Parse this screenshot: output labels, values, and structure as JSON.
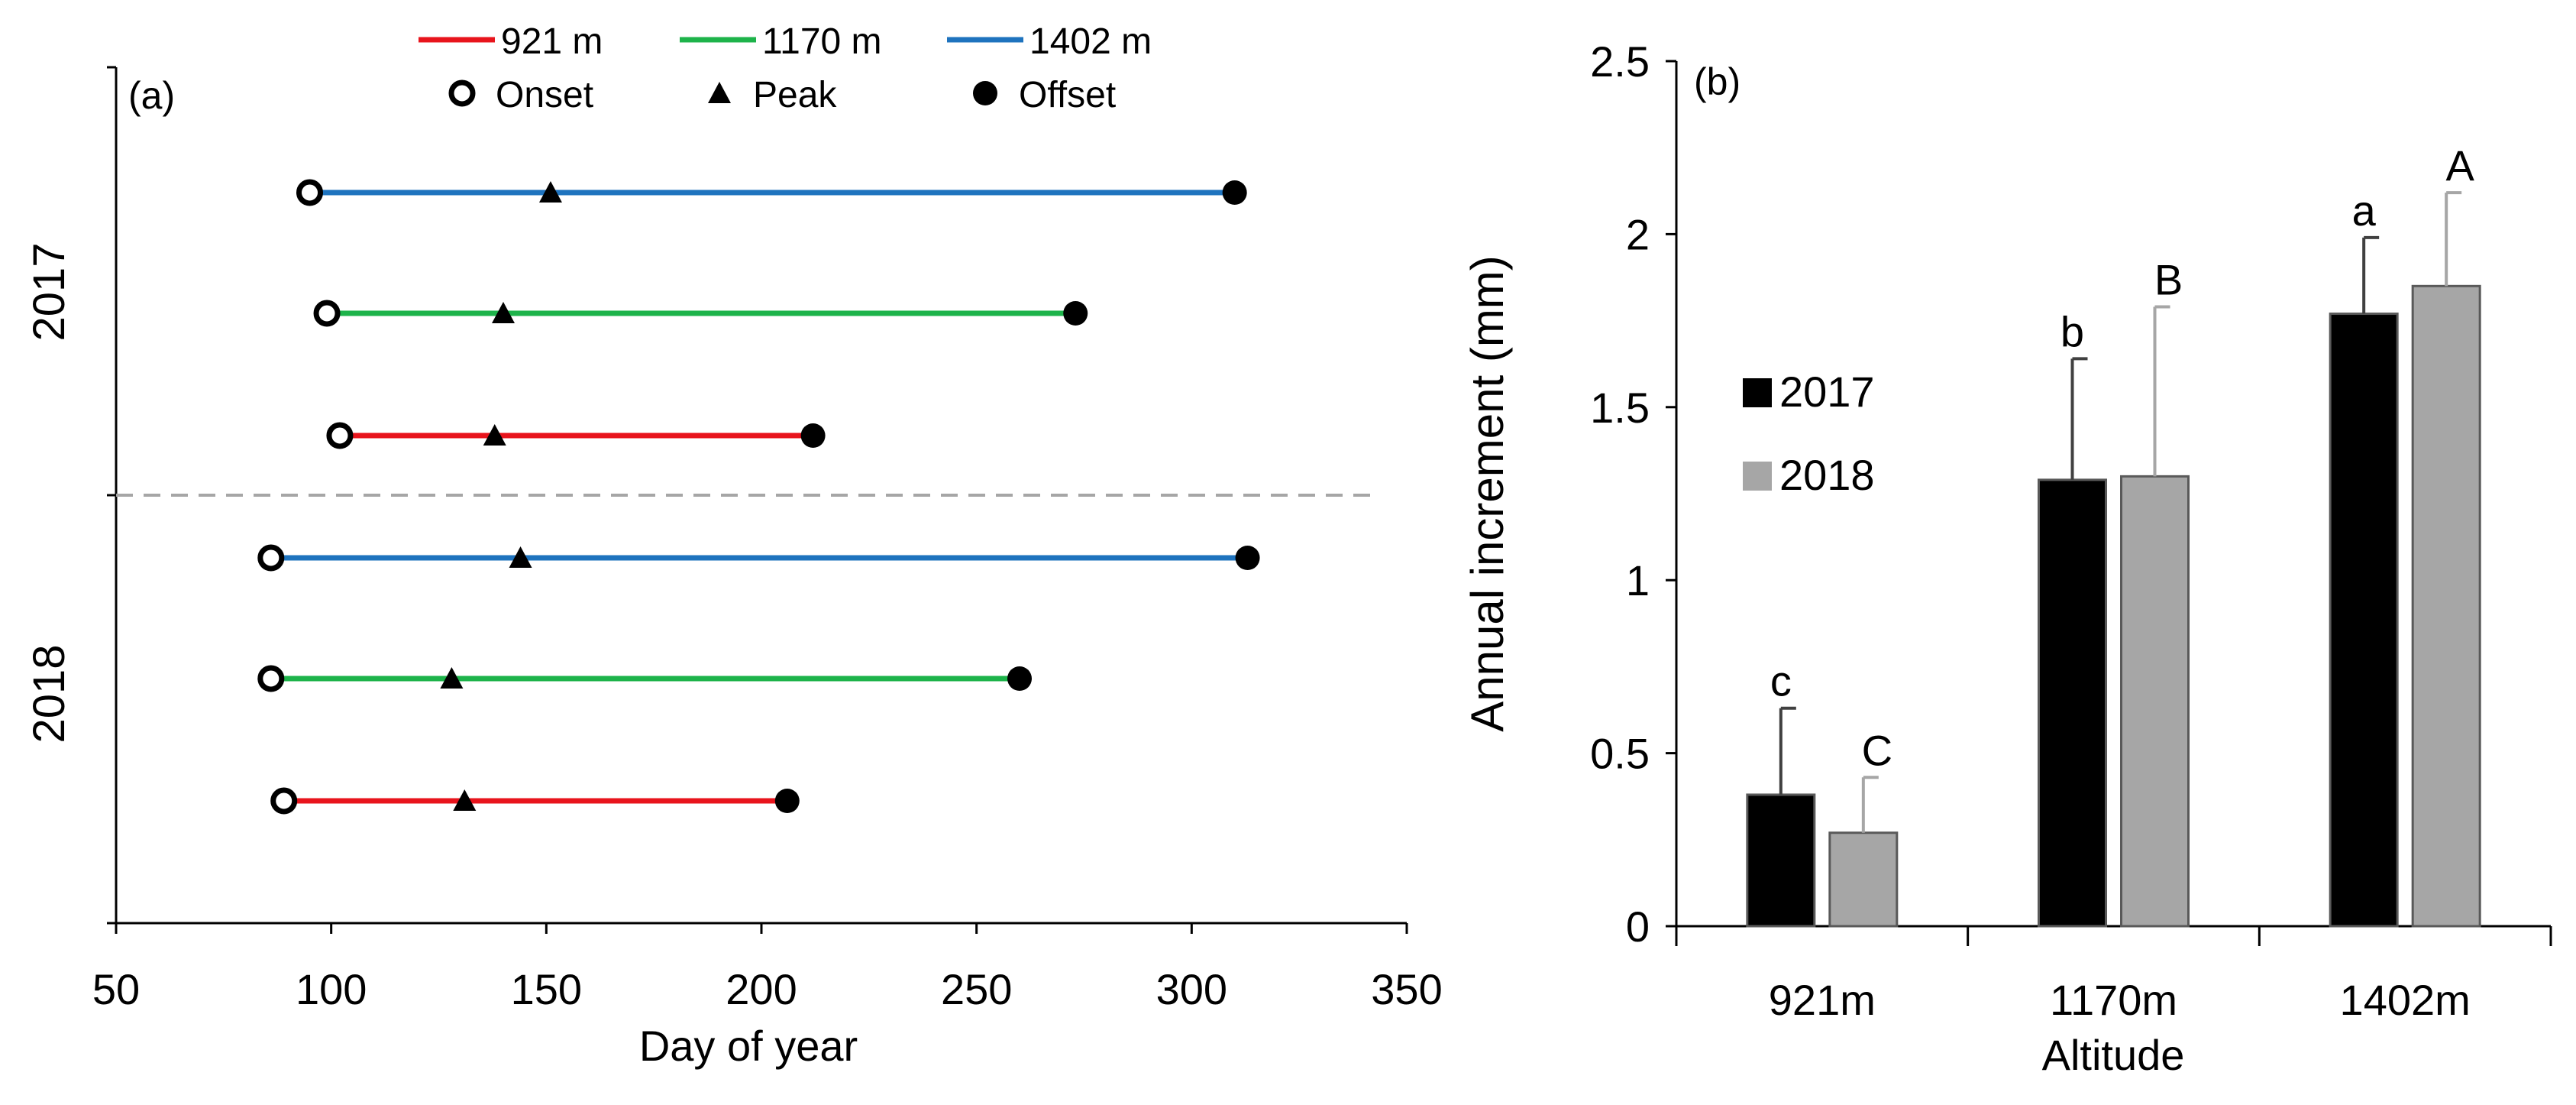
{
  "chart_data": [
    {
      "panel_label": "(a)",
      "type": "line",
      "title": "",
      "xlabel": "Day of year",
      "ylabel": "",
      "xlim": [
        50,
        350
      ],
      "xticks": [
        "50",
        "100",
        "150",
        "200",
        "250",
        "300",
        "350"
      ],
      "legend": {
        "placement": "top",
        "lines": [
          {
            "label": "921 m",
            "color": "#e8141c"
          },
          {
            "label": "1170 m",
            "color": "#1db34a"
          },
          {
            "label": "1402 m",
            "color": "#1e73be"
          }
        ],
        "markers": [
          {
            "label": "Onset",
            "shape": "open-circle"
          },
          {
            "label": "Peak",
            "shape": "triangle"
          },
          {
            "label": "Offset",
            "shape": "filled-circle"
          }
        ]
      },
      "groups": [
        {
          "year_label": "2017",
          "series": [
            {
              "altitude": "1402 m",
              "color": "#1e73be",
              "onset": 95,
              "peak": 151,
              "offset": 310
            },
            {
              "altitude": "1170 m",
              "color": "#1db34a",
              "onset": 99,
              "peak": 140,
              "offset": 273
            },
            {
              "altitude": "921 m",
              "color": "#e8141c",
              "onset": 102,
              "peak": 138,
              "offset": 212
            }
          ]
        },
        {
          "year_label": "2018",
          "series": [
            {
              "altitude": "1402 m",
              "color": "#1e73be",
              "onset": 86,
              "peak": 144,
              "offset": 313
            },
            {
              "altitude": "1170 m",
              "color": "#1db34a",
              "onset": 86,
              "peak": 128,
              "offset": 260
            },
            {
              "altitude": "921 m",
              "color": "#e8141c",
              "onset": 89,
              "peak": 131,
              "offset": 206
            }
          ]
        }
      ]
    },
    {
      "panel_label": "(b)",
      "type": "bar",
      "title": "",
      "xlabel": "Altitude",
      "ylabel": "Annual increment (mm)",
      "ylim": [
        0,
        2.5
      ],
      "yticks": [
        "0",
        "0.5",
        "1",
        "1.5",
        "2",
        "2.5"
      ],
      "categories": [
        "921m",
        "1170m",
        "1402m"
      ],
      "legend_placement": "upper-left",
      "series": [
        {
          "name": "2017",
          "color": "#000000",
          "values": [
            0.38,
            1.29,
            1.77
          ],
          "errors": [
            0.25,
            0.35,
            0.22
          ],
          "letters": [
            "c",
            "b",
            "a"
          ]
        },
        {
          "name": "2018",
          "color": "#a6a6a6",
          "values": [
            0.27,
            1.3,
            1.85
          ],
          "errors": [
            0.16,
            0.49,
            0.27
          ],
          "letters": [
            "C",
            "B",
            "A"
          ]
        }
      ]
    }
  ]
}
